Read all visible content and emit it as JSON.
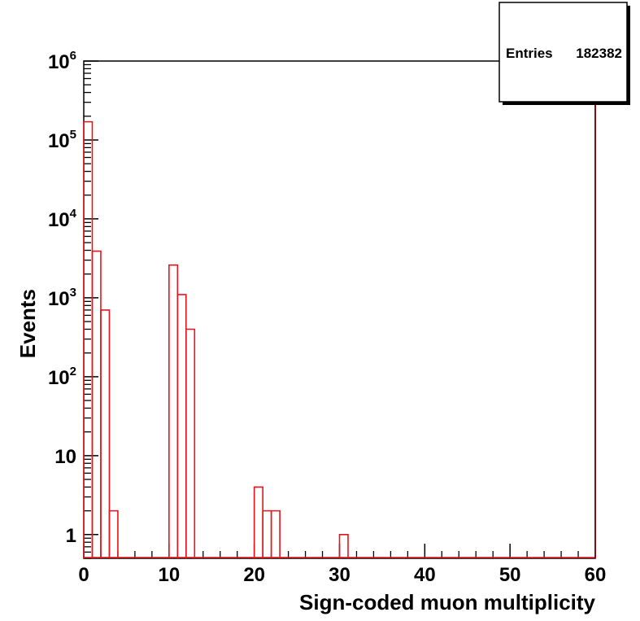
{
  "chart_data": {
    "type": "bar",
    "style": "step-histogram",
    "xlabel": "Sign-coded muon multiplicity",
    "ylabel": "Events",
    "xlim": [
      0,
      60
    ],
    "ylim": [
      0.5,
      1000000
    ],
    "y_scale": "log",
    "bin_width": 1,
    "line_color": "#e8141b",
    "x_ticks": [
      {
        "value": 0,
        "label": "0"
      },
      {
        "value": 10,
        "label": "10"
      },
      {
        "value": 20,
        "label": "20"
      },
      {
        "value": 30,
        "label": "30"
      },
      {
        "value": 40,
        "label": "40"
      },
      {
        "value": 50,
        "label": "50"
      },
      {
        "value": 60,
        "label": "60"
      }
    ],
    "y_ticks": [
      {
        "value": 1,
        "base": "1",
        "exp": ""
      },
      {
        "value": 10,
        "base": "10",
        "exp": ""
      },
      {
        "value": 100,
        "base": "10",
        "exp": "2"
      },
      {
        "value": 1000,
        "base": "10",
        "exp": "3"
      },
      {
        "value": 10000,
        "base": "10",
        "exp": "4"
      },
      {
        "value": 100000,
        "base": "10",
        "exp": "5"
      },
      {
        "value": 1000000,
        "base": "10",
        "exp": "6"
      }
    ],
    "bins": [
      {
        "x": 0,
        "count": 170000
      },
      {
        "x": 1,
        "count": 3900
      },
      {
        "x": 2,
        "count": 700
      },
      {
        "x": 3,
        "count": 2
      },
      {
        "x": 10,
        "count": 2600
      },
      {
        "x": 11,
        "count": 1100
      },
      {
        "x": 12,
        "count": 400
      },
      {
        "x": 20,
        "count": 4
      },
      {
        "x": 21,
        "count": 2
      },
      {
        "x": 22,
        "count": 2
      },
      {
        "x": 30,
        "count": 1
      }
    ],
    "stats_box": {
      "label": "Entries",
      "value": "182382"
    }
  }
}
